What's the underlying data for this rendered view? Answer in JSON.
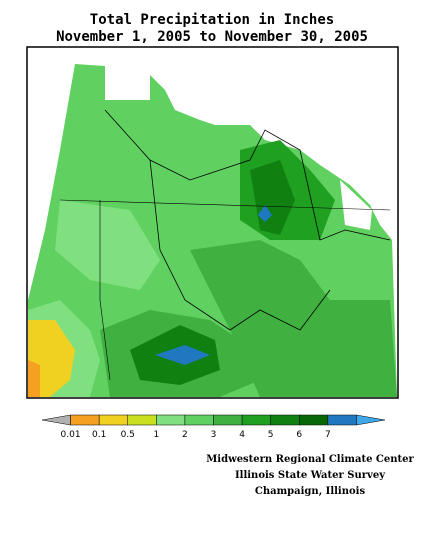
{
  "header": {
    "title": "Total Precipitation in Inches",
    "subtitle": "November 1, 2005 to November 30, 2005"
  },
  "legend": {
    "colors": [
      "#b0b0b0",
      "#f5a020",
      "#f0d020",
      "#c8e020",
      "#80e080",
      "#60d060",
      "#40b040",
      "#20a020",
      "#108010",
      "#086808",
      "#2078c0",
      "#40a8e8"
    ],
    "labels": [
      "0.01",
      "0.1",
      "0.5",
      "1",
      "2",
      "3",
      "4",
      "5",
      "6",
      "7"
    ]
  },
  "credits": [
    "Midwestern Regional Climate Center",
    "Illinois State Water Survey",
    "Champaign, Illinois"
  ]
}
